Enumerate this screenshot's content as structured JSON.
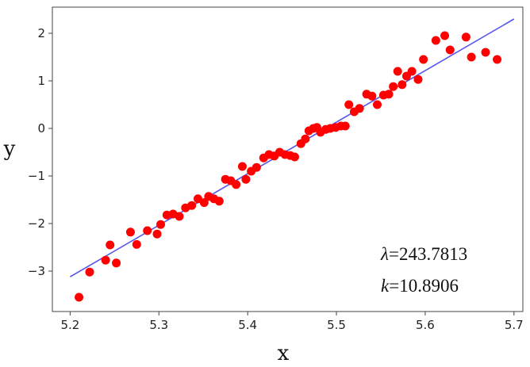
{
  "chart_data": {
    "type": "scatter",
    "xlabel": "x",
    "ylabel": "y",
    "xlim": [
      5.18,
      5.71
    ],
    "ylim": [
      -3.85,
      2.55
    ],
    "xticks": [
      "5.2",
      "5.3",
      "5.4",
      "5.5",
      "5.6",
      "5.7"
    ],
    "xtick_values": [
      5.2,
      5.3,
      5.4,
      5.5,
      5.6,
      5.7
    ],
    "yticks": [
      "2",
      "1",
      "0",
      "−1",
      "−2",
      "−3"
    ],
    "ytick_values": [
      2,
      1,
      0,
      -1,
      -2,
      -3
    ],
    "grid": false,
    "series": [
      {
        "kind": "scatter",
        "color": "#ff0000",
        "x": [
          5.21,
          5.222,
          5.24,
          5.245,
          5.252,
          5.268,
          5.275,
          5.287,
          5.298,
          5.302,
          5.309,
          5.316,
          5.323,
          5.33,
          5.337,
          5.344,
          5.351,
          5.356,
          5.362,
          5.368,
          5.375,
          5.381,
          5.387,
          5.394,
          5.398,
          5.404,
          5.41,
          5.418,
          5.424,
          5.43,
          5.436,
          5.442,
          5.448,
          5.453,
          5.46,
          5.465,
          5.469,
          5.474,
          5.478,
          5.482,
          5.488,
          5.493,
          5.499,
          5.505,
          5.51,
          5.514,
          5.52,
          5.526,
          5.534,
          5.54,
          5.546,
          5.553,
          5.559,
          5.564,
          5.569,
          5.574,
          5.579,
          5.585,
          5.592,
          5.598,
          5.612,
          5.622,
          5.628,
          5.646,
          5.652,
          5.668,
          5.681
        ],
        "y": [
          -3.55,
          -3.02,
          -2.77,
          -2.45,
          -2.83,
          -2.18,
          -2.44,
          -2.15,
          -2.22,
          -2.02,
          -1.82,
          -1.8,
          -1.85,
          -1.67,
          -1.62,
          -1.48,
          -1.56,
          -1.43,
          -1.48,
          -1.53,
          -1.07,
          -1.1,
          -1.18,
          -0.8,
          -1.07,
          -0.9,
          -0.82,
          -0.62,
          -0.55,
          -0.58,
          -0.5,
          -0.55,
          -0.57,
          -0.6,
          -0.32,
          -0.22,
          -0.05,
          0.0,
          0.02,
          -0.08,
          -0.02,
          0.0,
          0.02,
          0.05,
          0.05,
          0.5,
          0.35,
          0.42,
          0.72,
          0.68,
          0.5,
          0.7,
          0.72,
          0.88,
          1.2,
          0.92,
          1.1,
          1.2,
          1.03,
          1.45,
          1.85,
          1.95,
          1.65,
          1.92,
          1.5,
          1.6,
          1.45
        ]
      },
      {
        "kind": "line",
        "color": "#5555ee",
        "x": [
          5.2,
          5.7
        ],
        "y": [
          -3.12,
          2.3
        ]
      }
    ],
    "annotations": [
      {
        "symbol": "λ",
        "text": "=243.7813"
      },
      {
        "symbol": "k",
        "text": "=10.8906"
      }
    ]
  }
}
